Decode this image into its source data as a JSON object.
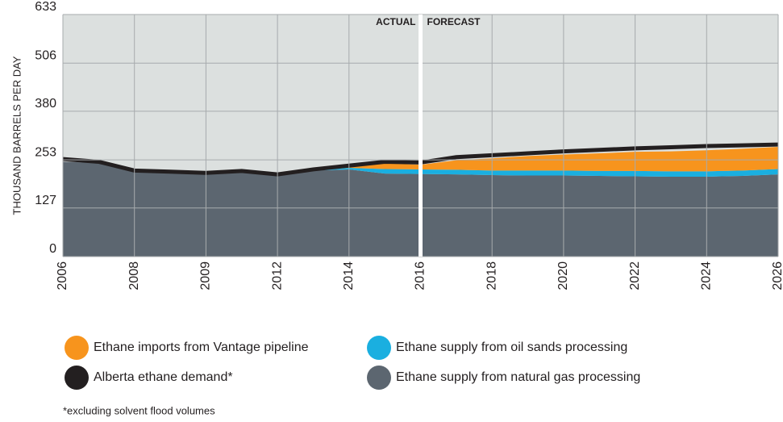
{
  "chart_data": {
    "type": "area",
    "y_label": "THOUSAND BARRELS PER DAY",
    "annotations": [
      "ACTUAL",
      "FORECAST"
    ],
    "footnote": "*excluding solvent flood volumes",
    "categories": [
      "2006",
      null,
      "2008",
      null,
      "2009",
      null,
      "2012",
      null,
      "2014",
      null,
      "2016",
      null,
      "2018",
      null,
      "2020",
      null,
      "2022",
      null,
      "2024",
      null,
      "2026"
    ],
    "ylim": [
      0,
      633
    ],
    "yticks": [
      0,
      127,
      253,
      380,
      506,
      633
    ],
    "grid": true,
    "stacked": true,
    "series": [
      {
        "name": "Ethane supply from natural gas processing",
        "color": "#5c6670",
        "values": [
          248,
          245,
          222,
          220,
          217,
          220,
          212,
          225,
          228,
          217,
          216,
          215,
          213,
          212,
          212,
          211,
          210,
          209,
          209,
          211,
          215
        ]
      },
      {
        "name": "Ethane supply from oil sands processing",
        "color": "#1aafe0",
        "values": [
          0,
          0,
          0,
          0,
          0,
          0,
          0,
          0,
          4,
          12,
          12,
          12,
          12,
          13,
          13,
          13,
          14,
          14,
          14,
          14,
          14
        ]
      },
      {
        "name": "Ethane imports from Vantage pipeline",
        "color": "#f7941d",
        "values": [
          0,
          0,
          0,
          0,
          0,
          0,
          0,
          0,
          4,
          15,
          12,
          25,
          32,
          38,
          42,
          46,
          50,
          52,
          55,
          57,
          58
        ]
      },
      {
        "name": "Alberta ethane demand*",
        "color": "#231f20",
        "line": true,
        "values": [
          255,
          248,
          225,
          222,
          219,
          224,
          215,
          228,
          238,
          248,
          246,
          260,
          265,
          270,
          275,
          279,
          283,
          286,
          289,
          291,
          293
        ]
      }
    ]
  }
}
